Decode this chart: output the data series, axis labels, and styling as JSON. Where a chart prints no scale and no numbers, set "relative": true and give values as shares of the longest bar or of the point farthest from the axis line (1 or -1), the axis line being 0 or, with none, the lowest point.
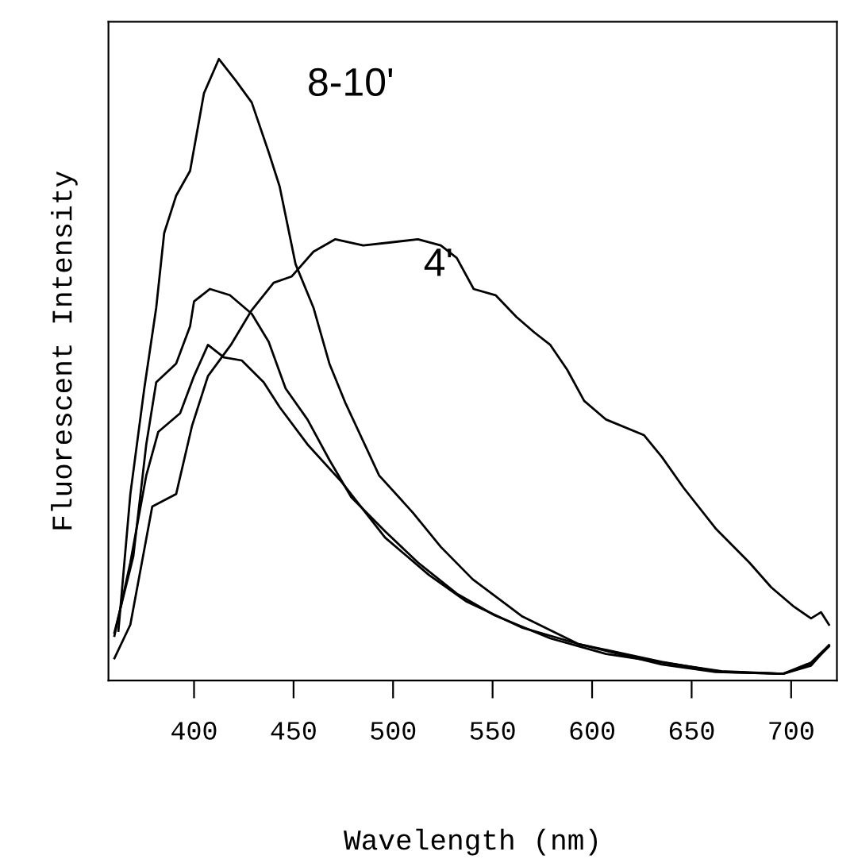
{
  "chart_data": {
    "type": "line",
    "relative": true,
    "xlabel": "Wavelength (nm)",
    "ylabel": "Fluorescent Intensity",
    "xlim": [
      357,
      723
    ],
    "xticks": [
      400,
      450,
      500,
      550,
      600,
      650,
      700
    ],
    "tick_labels": "x",
    "grid": false,
    "line_style": "solid",
    "marker": "none",
    "series": [
      {
        "name": "8-10'",
        "color": "#000000",
        "x": [
          362,
          368,
          375,
          381,
          385,
          391,
          398,
          405,
          412.5,
          421,
          429,
          437.5,
          443,
          451,
          460,
          468,
          476,
          493,
          510,
          524,
          540,
          565,
          593,
          635,
          665,
          696,
          710,
          719
        ],
        "values": [
          0.08,
          0.3,
          0.47,
          0.6,
          0.72,
          0.78,
          0.82,
          0.945,
          1.0,
          0.965,
          0.93,
          0.85,
          0.795,
          0.67,
          0.6,
          0.51,
          0.447,
          0.33,
          0.27,
          0.215,
          0.163,
          0.103,
          0.059,
          0.03,
          0.014,
          0.011,
          0.024,
          0.057
        ]
      },
      {
        "color": "#000000",
        "x": [
          360,
          369.5,
          376,
          381,
          391,
          398,
          400,
          408,
          418,
          429,
          437.5,
          446,
          457,
          468,
          479,
          496,
          512.5,
          532,
          551,
          579,
          607,
          648,
          665,
          696,
          710,
          719
        ],
        "values": [
          0.077,
          0.2,
          0.38,
          0.48,
          0.51,
          0.57,
          0.61,
          0.63,
          0.62,
          0.59,
          0.545,
          0.47,
          0.42,
          0.355,
          0.295,
          0.24,
          0.19,
          0.14,
          0.105,
          0.068,
          0.043,
          0.023,
          0.015,
          0.011,
          0.026,
          0.055
        ]
      },
      {
        "color": "#000000",
        "x": [
          360,
          368,
          376,
          382,
          393,
          400,
          407,
          415,
          424,
          435,
          443,
          457,
          474,
          496,
          518,
          537,
          565,
          593,
          635,
          662,
          696,
          710,
          719
        ],
        "values": [
          0.072,
          0.19,
          0.33,
          0.4,
          0.43,
          0.49,
          0.54,
          0.52,
          0.515,
          0.48,
          0.44,
          0.38,
          0.32,
          0.23,
          0.17,
          0.127,
          0.085,
          0.059,
          0.026,
          0.014,
          0.011,
          0.029,
          0.057
        ]
      },
      {
        "name": "4'",
        "color": "#000000",
        "x": [
          360,
          368,
          379,
          391,
          399,
          407,
          418.5,
          429,
          440,
          449,
          460,
          471,
          485,
          499,
          512.5,
          524,
          532,
          540.5,
          551.5,
          562,
          571,
          579,
          587.5,
          596,
          607,
          626,
          635,
          646,
          662,
          679,
          690,
          701,
          710,
          715,
          719
        ],
        "values": [
          0.036,
          0.09,
          0.28,
          0.3,
          0.41,
          0.49,
          0.54,
          0.596,
          0.64,
          0.65,
          0.69,
          0.71,
          0.7,
          0.705,
          0.71,
          0.7,
          0.68,
          0.63,
          0.62,
          0.585,
          0.56,
          0.54,
          0.5,
          0.45,
          0.42,
          0.395,
          0.36,
          0.31,
          0.245,
          0.19,
          0.15,
          0.12,
          0.1,
          0.11,
          0.09
        ]
      }
    ]
  }
}
